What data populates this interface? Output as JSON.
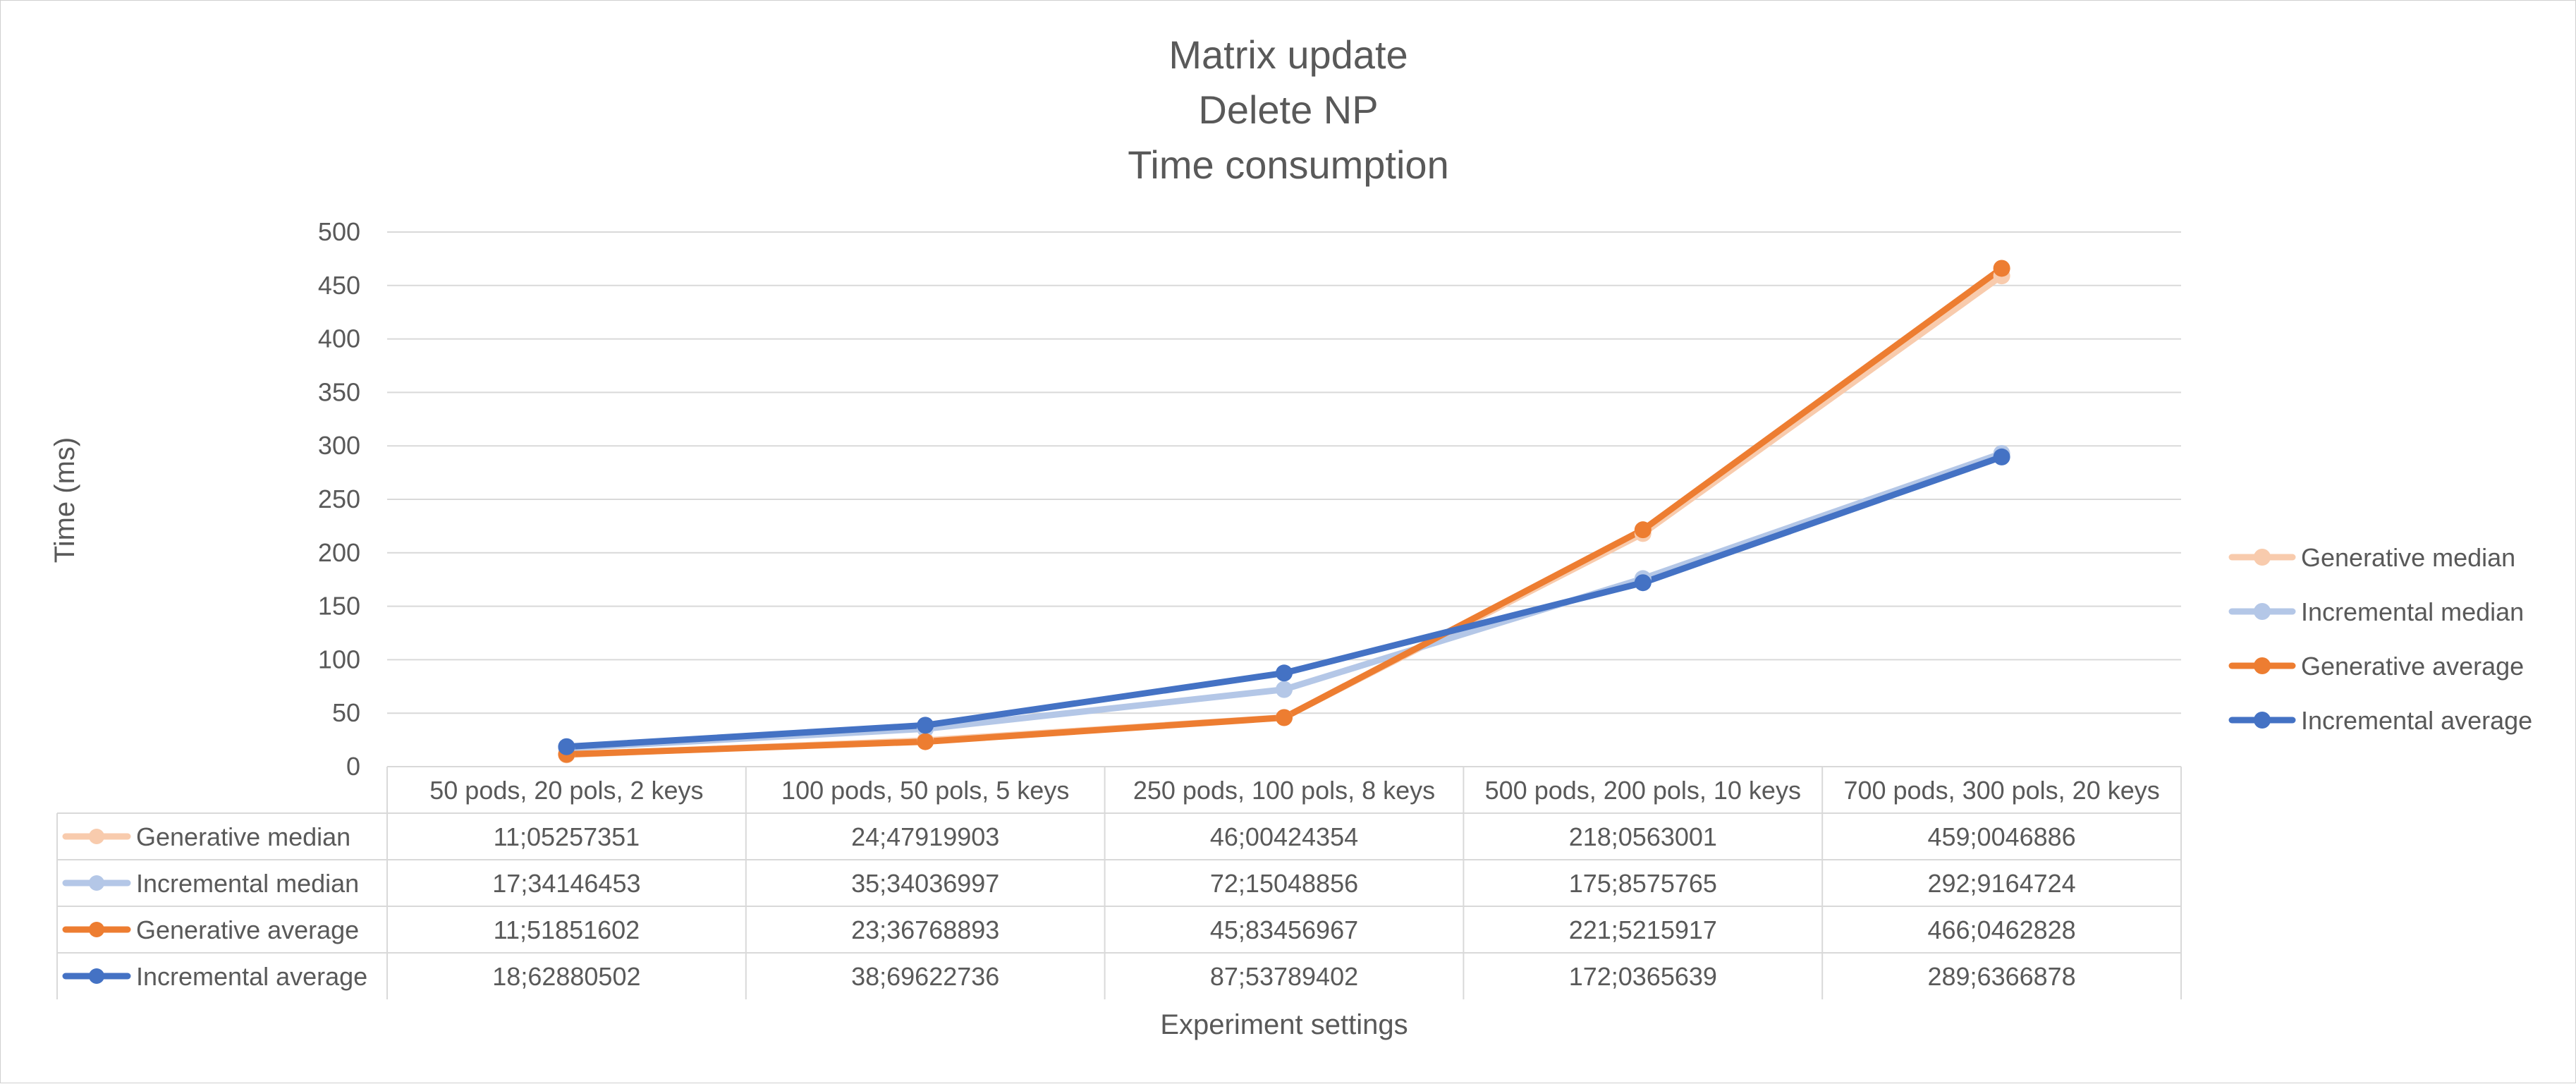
{
  "chart_data": {
    "type": "line",
    "title": [
      "Matrix update",
      "Delete NP",
      "Time consumption"
    ],
    "xlabel": "Experiment settings",
    "ylabel": "Time (ms)",
    "ylim": [
      0,
      500
    ],
    "yticks": [
      0,
      50,
      100,
      150,
      200,
      250,
      300,
      350,
      400,
      450,
      500
    ],
    "grid": true,
    "legend_position": "right",
    "categories": [
      "50 pods, 20 pols, 2 keys",
      "100 pods, 50 pols, 5 keys",
      "250 pods, 100 pols, 8 keys",
      "500 pods, 200 pols, 10 keys",
      "700 pods, 300 pols, 20 keys"
    ],
    "series": [
      {
        "name": "Generative median",
        "color": "#F8CBAD",
        "values": [
          11.05257351,
          24.47919903,
          46.00424354,
          218.0563001,
          459.0046886
        ],
        "labels": [
          "11;05257351",
          "24;47919903",
          "46;00424354",
          "218;0563001",
          "459;0046886"
        ]
      },
      {
        "name": "Incremental median",
        "color": "#B4C7E7",
        "values": [
          17.34146453,
          35.34036997,
          72.15048856,
          175.8575765,
          292.9164724
        ],
        "labels": [
          "17;34146453",
          "35;34036997",
          "72;15048856",
          "175;8575765",
          "292;9164724"
        ]
      },
      {
        "name": "Generative average",
        "color": "#ED7D31",
        "values": [
          11.51851602,
          23.36768893,
          45.83456967,
          221.5215917,
          466.0462828
        ],
        "labels": [
          "11;51851602",
          "23;36768893",
          "45;83456967",
          "221;5215917",
          "466;0462828"
        ]
      },
      {
        "name": "Incremental average",
        "color": "#4472C4",
        "values": [
          18.62880502,
          38.69622736,
          87.53789402,
          172.0365639,
          289.6366878
        ],
        "labels": [
          "18;62880502",
          "38;69622736",
          "87;53789402",
          "172;0365639",
          "289;6366878"
        ]
      }
    ]
  }
}
